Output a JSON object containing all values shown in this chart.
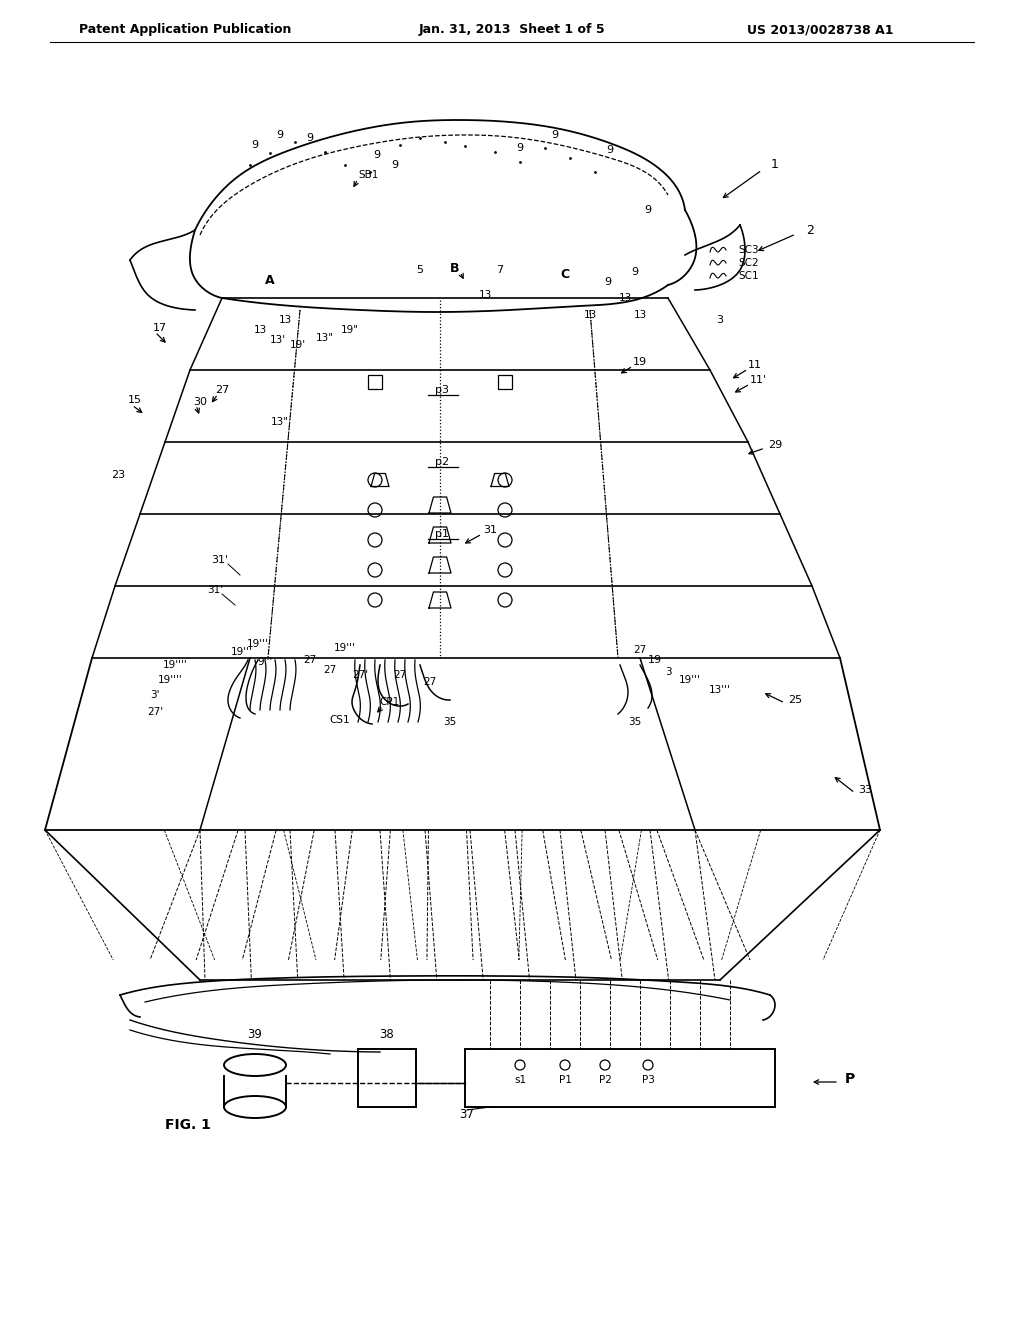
{
  "bg_color": "#ffffff",
  "header_left": "Patent Application Publication",
  "header_mid": "Jan. 31, 2013  Sheet 1 of 5",
  "header_right": "US 2013/0028738 A1",
  "footer_label": "FIG. 1"
}
